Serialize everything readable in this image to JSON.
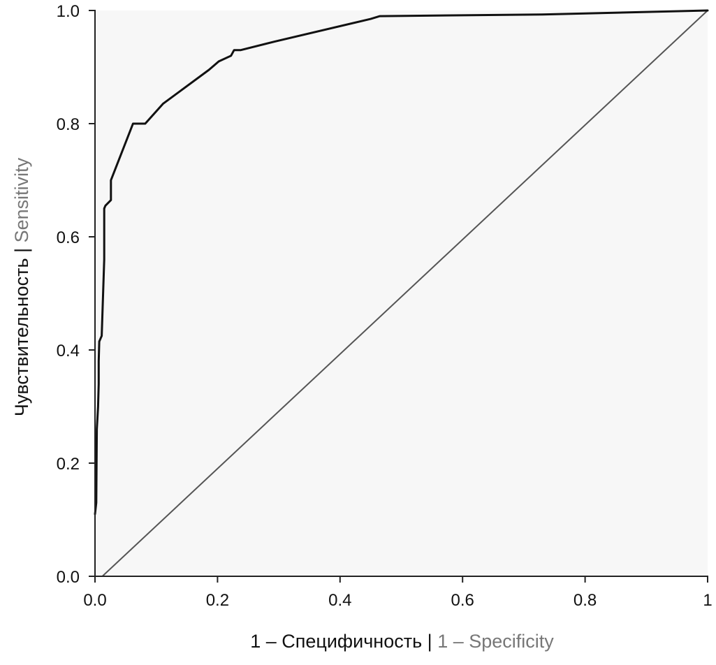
{
  "chart_data": {
    "type": "line",
    "title": "",
    "xlabel": {
      "primary": "1 – Специфичность |",
      "secondary": " 1 – Specificity"
    },
    "ylabel": {
      "primary": "Чувствительность |",
      "secondary": " Sensitivity"
    },
    "xlim": [
      0,
      1
    ],
    "ylim": [
      0,
      1
    ],
    "grid": false,
    "plot_background": "#f7f7f7",
    "colors": {
      "roc_curve": "#111111",
      "reference_line": "#555555",
      "axes": "#222222"
    },
    "x_ticks": [
      {
        "value": 0.0,
        "label": "0.0"
      },
      {
        "value": 0.2,
        "label": "0.2"
      },
      {
        "value": 0.4,
        "label": "0.4"
      },
      {
        "value": 0.6,
        "label": "0.6"
      },
      {
        "value": 0.8,
        "label": "0.8"
      },
      {
        "value": 1.0,
        "label": "1"
      }
    ],
    "y_ticks": [
      {
        "value": 0.0,
        "label": "0.0"
      },
      {
        "value": 0.2,
        "label": "0.2"
      },
      {
        "value": 0.4,
        "label": "0.4"
      },
      {
        "value": 0.6,
        "label": "0.6"
      },
      {
        "value": 0.8,
        "label": "0.8"
      },
      {
        "value": 1.0,
        "label": "1.0"
      }
    ],
    "series": [
      {
        "role": "roc-curve",
        "x": [
          0.0,
          0.002,
          0.003,
          0.005,
          0.006,
          0.006,
          0.007,
          0.011,
          0.015,
          0.015,
          0.017,
          0.026,
          0.026,
          0.062,
          0.082,
          0.111,
          0.186,
          0.202,
          0.222,
          0.227,
          0.238,
          0.293,
          0.45,
          0.465,
          0.73,
          1.0
        ],
        "y": [
          0.11,
          0.13,
          0.26,
          0.3,
          0.34,
          0.38,
          0.415,
          0.425,
          0.56,
          0.65,
          0.655,
          0.665,
          0.7,
          0.8,
          0.8,
          0.835,
          0.895,
          0.91,
          0.92,
          0.93,
          0.93,
          0.945,
          0.985,
          0.99,
          0.993,
          1.0
        ]
      },
      {
        "role": "reference-line",
        "x": [
          0.012,
          1.0
        ],
        "y": [
          0.0,
          1.0
        ]
      }
    ]
  }
}
